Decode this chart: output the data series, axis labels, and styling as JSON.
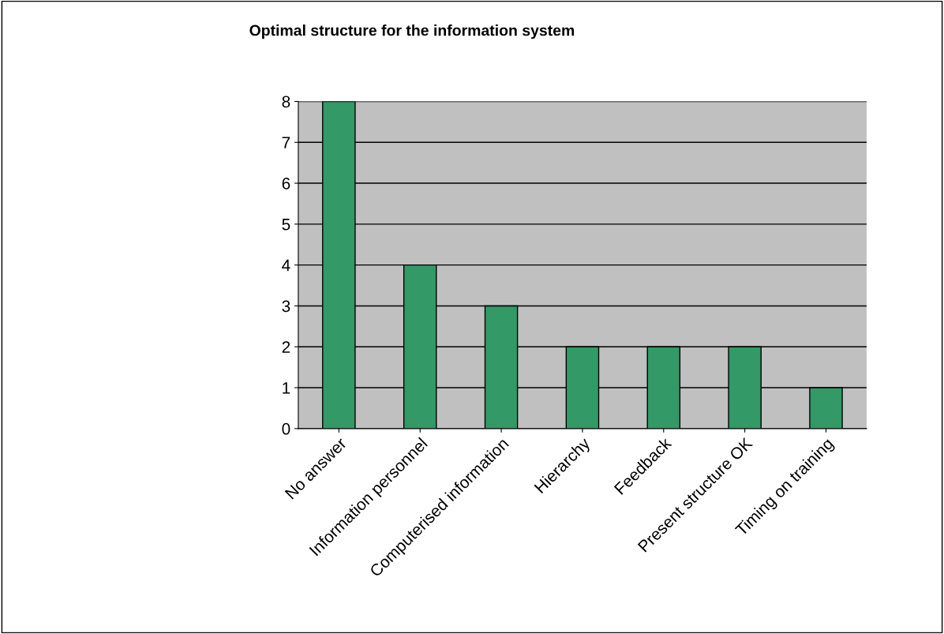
{
  "chart_data": {
    "type": "bar",
    "title": "Optimal structure for the information system",
    "categories": [
      "No answer",
      "Information personnel",
      "Computerised information",
      "Hierarchy",
      "Feedback",
      "Present structure OK",
      "Timing on training"
    ],
    "values": [
      8,
      4,
      3,
      2,
      2,
      2,
      1
    ],
    "color": "#339966",
    "ylim": [
      0,
      8
    ],
    "yticks": [
      0,
      1,
      2,
      3,
      4,
      5,
      6,
      7,
      8
    ],
    "grid": "y",
    "legend": false
  }
}
